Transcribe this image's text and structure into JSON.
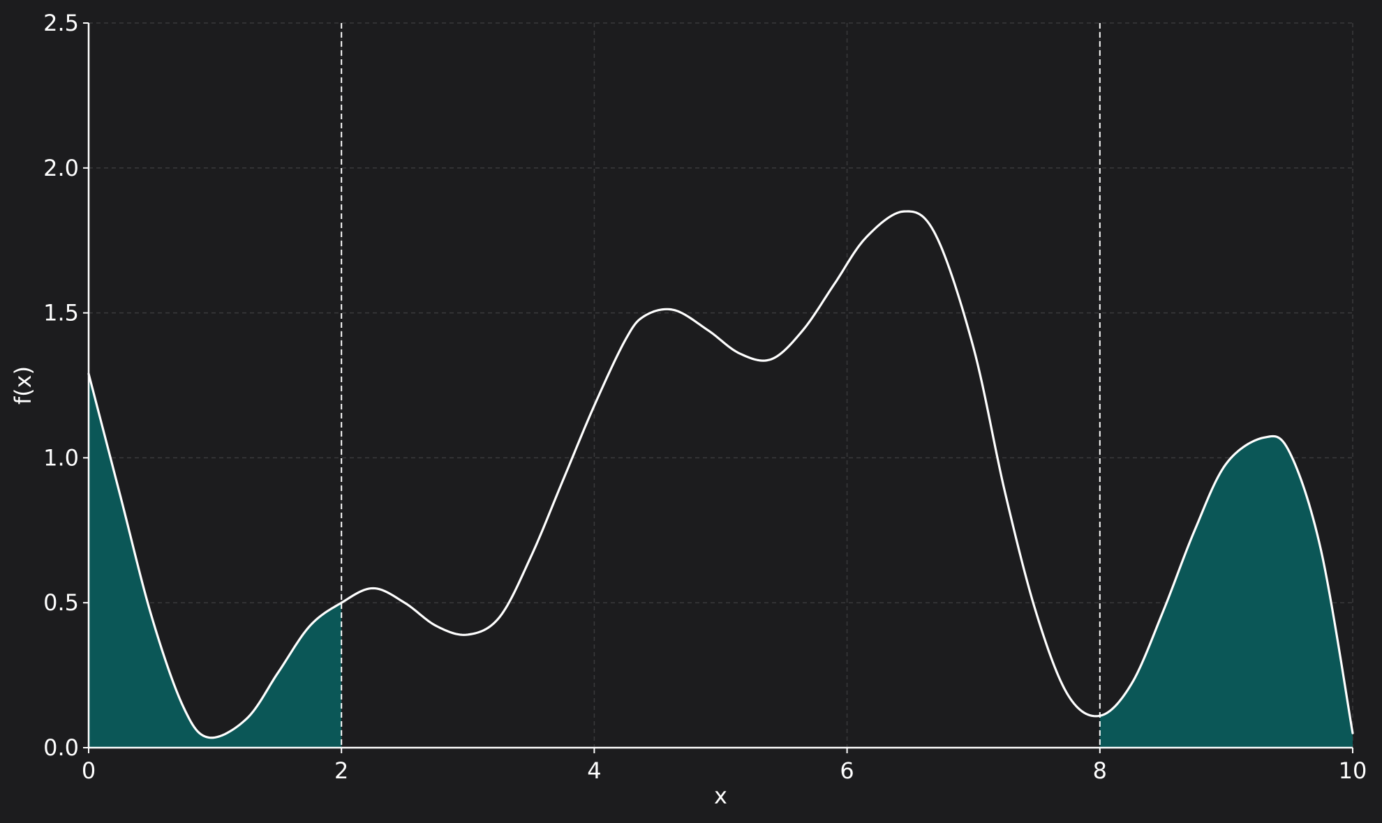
{
  "chart_data": {
    "type": "area",
    "title": "",
    "xlabel": "x",
    "ylabel": "f(x)",
    "xlim": [
      0,
      10
    ],
    "ylim": [
      0,
      2.5
    ],
    "x_ticks": [
      0,
      2,
      4,
      6,
      8,
      10
    ],
    "x_tick_labels": [
      "0",
      "2",
      "4",
      "6",
      "8",
      "10"
    ],
    "y_ticks": [
      0,
      0.5,
      1,
      1.5,
      2,
      2.5
    ],
    "y_tick_labels": [
      "0.0",
      "0.5",
      "1.0",
      "1.5",
      "2.0",
      "2.5"
    ],
    "grid": true,
    "grid_style": "dashed",
    "series": [
      {
        "x": [
          0,
          0.25,
          0.5,
          0.75,
          0.95,
          1.25,
          1.5,
          1.75,
          2,
          2.25,
          2.5,
          2.75,
          3,
          3.25,
          3.5,
          3.75,
          4,
          4.25,
          4.4,
          4.63,
          4.9,
          5.15,
          5.4,
          5.65,
          5.9,
          6.15,
          6.45,
          6.7,
          7,
          7.25,
          7.5,
          7.75,
          8,
          8.25,
          8.5,
          8.75,
          9,
          9.3,
          9.5,
          9.75,
          10
        ],
        "y": [
          1.29,
          0.87,
          0.45,
          0.14,
          0.035,
          0.1,
          0.26,
          0.42,
          0.5,
          0.55,
          0.5,
          0.42,
          0.39,
          0.45,
          0.66,
          0.92,
          1.18,
          1.41,
          1.49,
          1.51,
          1.44,
          1.36,
          1.34,
          1.44,
          1.6,
          1.76,
          1.85,
          1.77,
          1.38,
          0.88,
          0.46,
          0.18,
          0.11,
          0.22,
          0.47,
          0.75,
          0.98,
          1.07,
          1.02,
          0.68,
          0.05
        ]
      }
    ],
    "shaded_intervals": [
      [
        0,
        2
      ],
      [
        8,
        10
      ]
    ],
    "vertical_lines": [
      2,
      8
    ],
    "colors": {
      "background": "#1c1c1e",
      "line": "#ffffff",
      "fill": "#0b5757",
      "grid": "#3a3a3c",
      "vline": "#ffffff"
    }
  }
}
